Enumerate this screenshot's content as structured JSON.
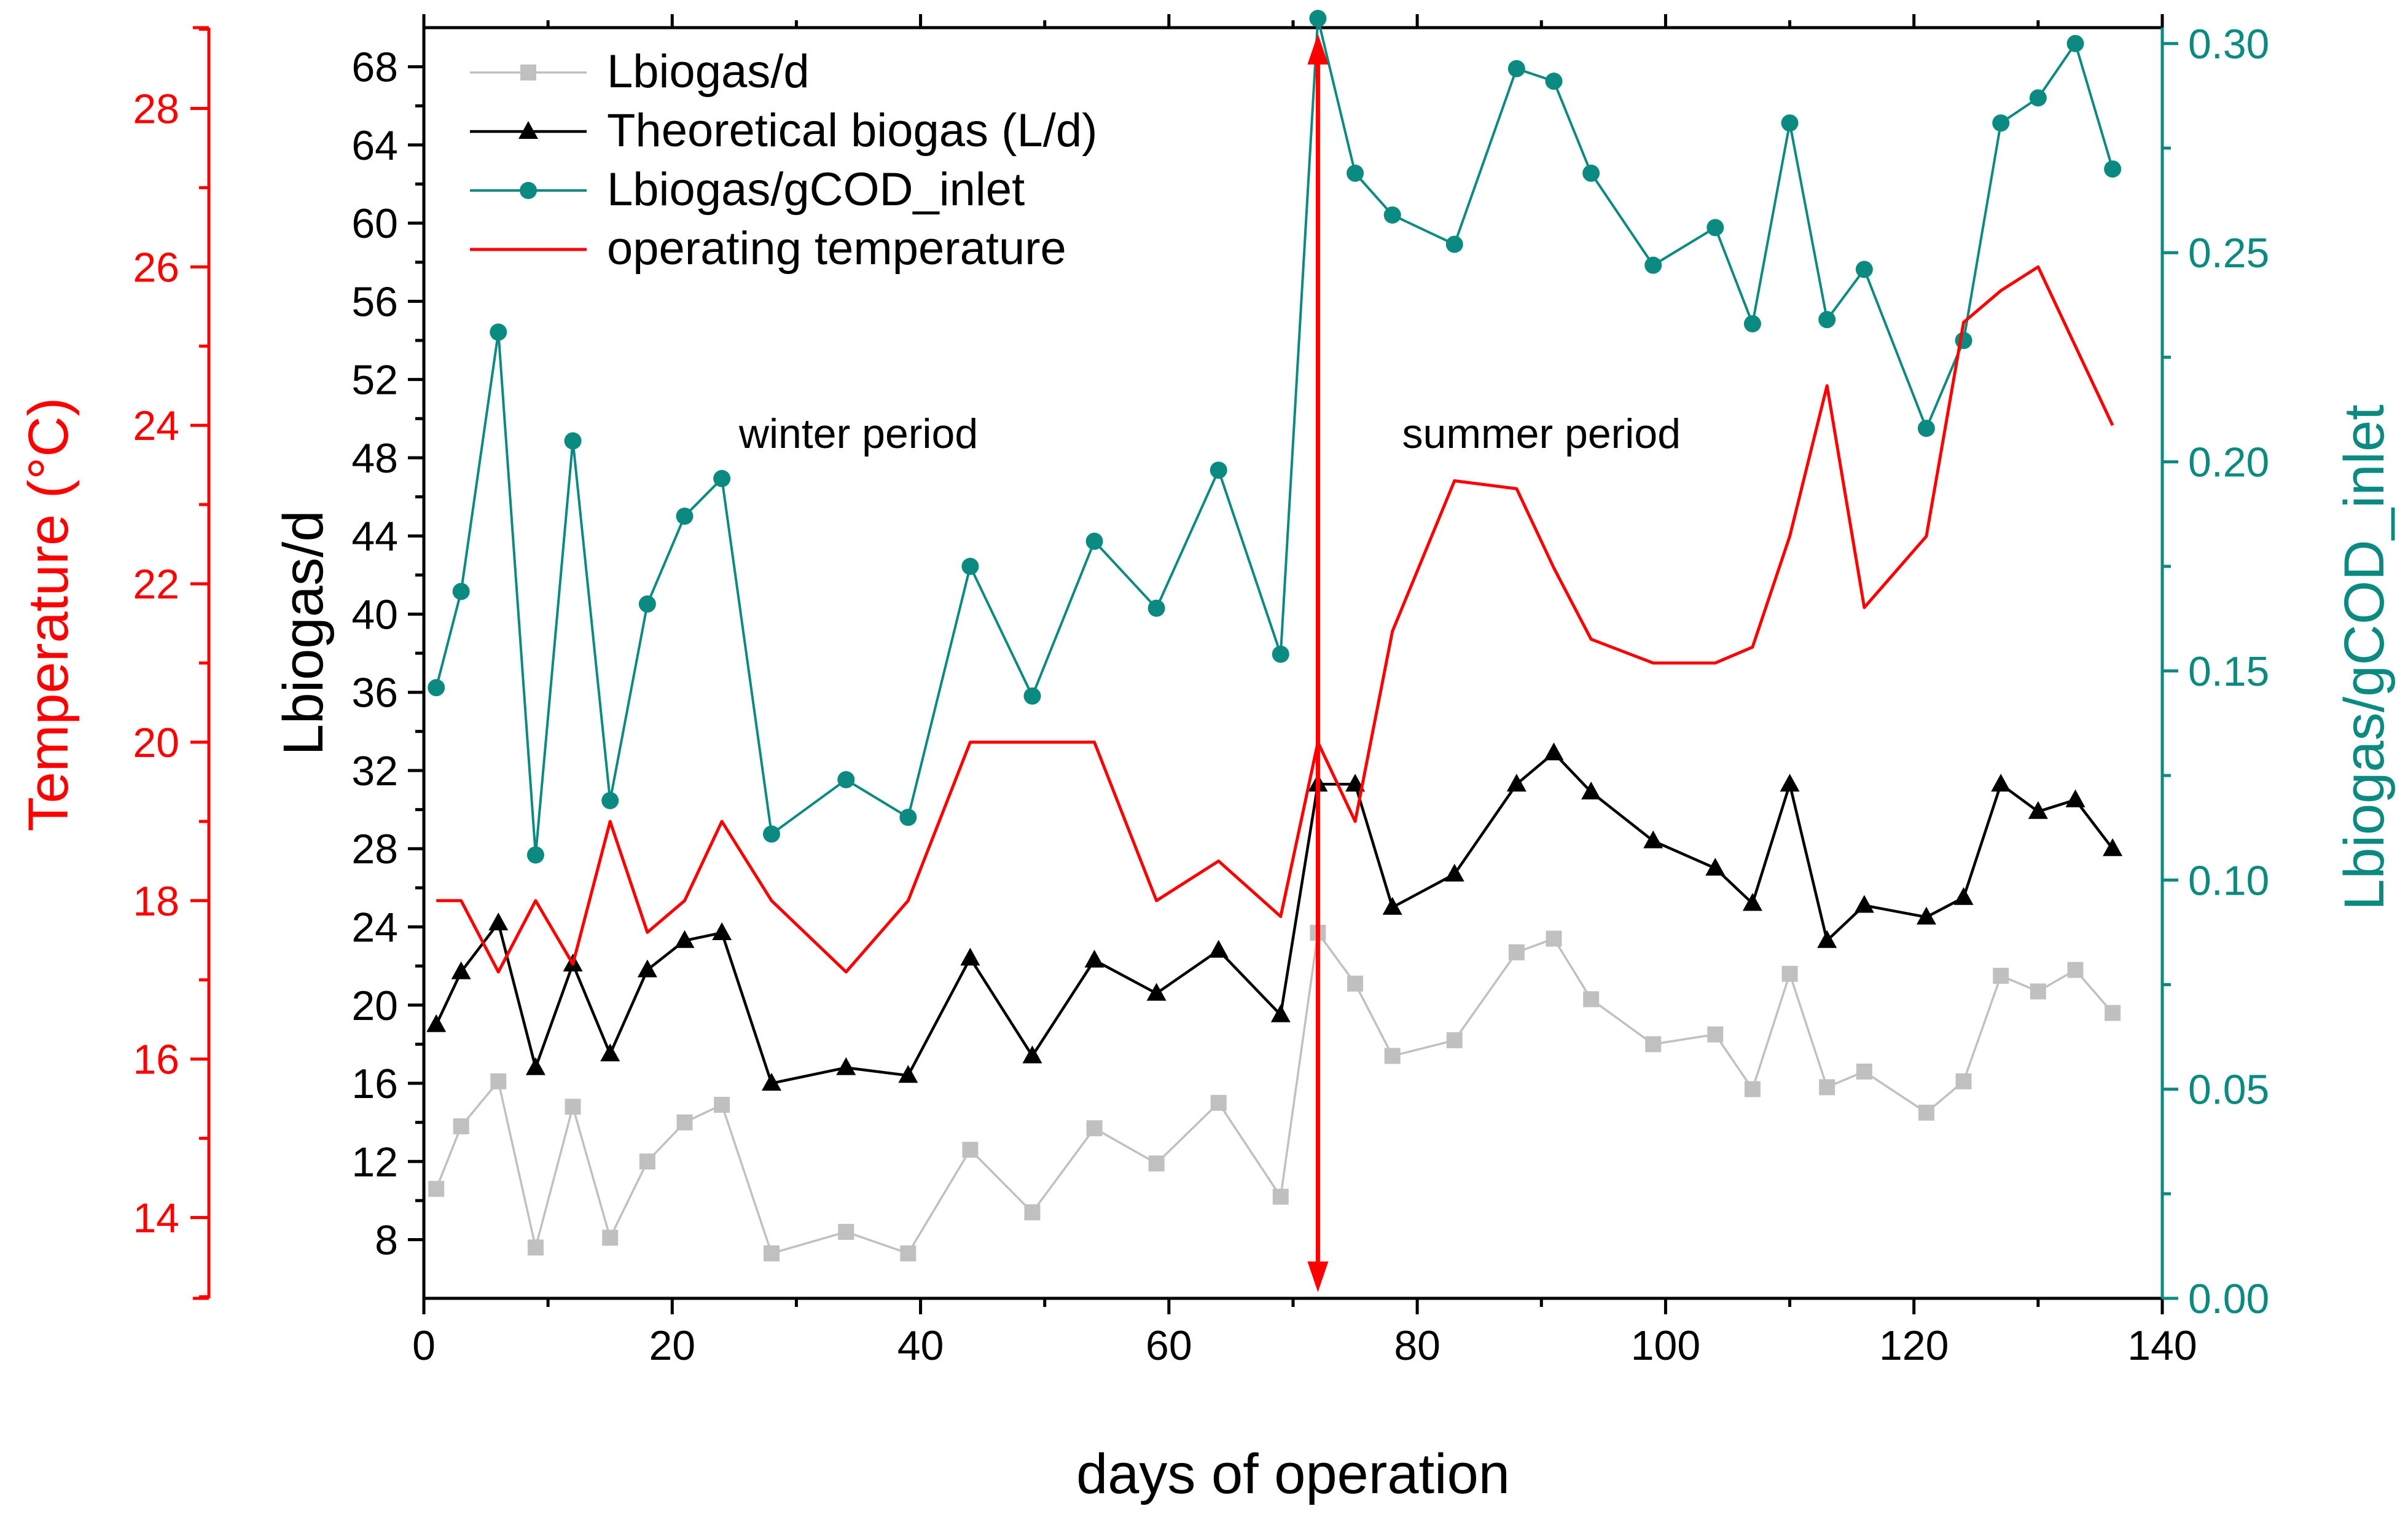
{
  "chart_data": {
    "type": "line",
    "title": "",
    "xlabel": "days of operation",
    "xlim": [
      0,
      140
    ],
    "xticks": [
      0,
      20,
      40,
      60,
      80,
      100,
      120,
      140
    ],
    "axes": {
      "left_primary": {
        "label": "Lbiogas/d",
        "range": [
          5,
          70
        ],
        "ticks": [
          8,
          12,
          16,
          20,
          24,
          28,
          32,
          36,
          40,
          44,
          48,
          52,
          56,
          60,
          64,
          68
        ],
        "color": "#000000"
      },
      "left_outer": {
        "label": "Temperature (°C)",
        "range": [
          12.98,
          29.02
        ],
        "ticks": [
          14,
          16,
          18,
          20,
          22,
          24,
          26,
          28
        ],
        "color": "#ff0000"
      },
      "right": {
        "label": "Lbiogas/gCOD_inlet",
        "range": [
          0,
          0.3038
        ],
        "ticks": [
          "0.00",
          "0.05",
          "0.10",
          "0.15",
          "0.20",
          "0.25",
          "0.30"
        ],
        "color": "#0a8a80"
      }
    },
    "series": [
      {
        "name": "Lbiogas/d",
        "axis": "left_primary",
        "color": "#c0c0c0",
        "marker": "square",
        "x": [
          1,
          3,
          6,
          9,
          12,
          15,
          18,
          21,
          24,
          28,
          34,
          39,
          44,
          49,
          54,
          59,
          64,
          69,
          72,
          75,
          78,
          83,
          88,
          91,
          94,
          99,
          104,
          107,
          110,
          113,
          116,
          121,
          124,
          127,
          130,
          133,
          136
        ],
        "y": [
          10.6,
          13.8,
          16.1,
          7.6,
          14.8,
          8.1,
          12.0,
          14.0,
          14.9,
          7.3,
          8.4,
          7.3,
          12.6,
          9.4,
          13.7,
          11.9,
          15.0,
          10.2,
          23.7,
          21.1,
          17.4,
          18.2,
          22.7,
          23.4,
          20.3,
          18.0,
          18.5,
          15.7,
          21.6,
          15.8,
          16.6,
          14.5,
          16.1,
          21.5,
          20.7,
          21.8,
          19.6
        ]
      },
      {
        "name": "Theoretical biogas (L/d)",
        "axis": "left_primary",
        "color": "#000000",
        "marker": "triangle",
        "x": [
          1,
          3,
          6,
          9,
          12,
          15,
          18,
          21,
          24,
          28,
          34,
          39,
          44,
          49,
          54,
          59,
          64,
          69,
          72,
          75,
          78,
          83,
          88,
          91,
          94,
          99,
          104,
          107,
          110,
          113,
          116,
          121,
          124,
          127,
          130,
          133,
          136
        ],
        "y": [
          19.0,
          21.7,
          24.2,
          16.8,
          22.1,
          17.5,
          21.8,
          23.3,
          23.7,
          16.0,
          16.8,
          16.4,
          22.4,
          17.4,
          22.3,
          20.6,
          22.8,
          19.5,
          31.3,
          31.3,
          25.0,
          26.7,
          31.3,
          32.9,
          30.9,
          28.4,
          27.0,
          25.2,
          31.3,
          23.3,
          25.1,
          24.5,
          25.5,
          31.3,
          29.9,
          30.5,
          28.0
        ]
      },
      {
        "name": "Lbiogas/gCOD_inlet",
        "axis": "right",
        "color": "#0a8a80",
        "marker": "circle",
        "x": [
          1,
          3,
          6,
          9,
          12,
          15,
          18,
          21,
          24,
          28,
          34,
          39,
          44,
          49,
          54,
          59,
          64,
          69,
          72,
          75,
          78,
          83,
          88,
          91,
          94,
          99,
          104,
          107,
          110,
          113,
          116,
          121,
          124,
          127,
          130,
          133,
          136
        ],
        "y": [
          0.146,
          0.169,
          0.231,
          0.106,
          0.205,
          0.119,
          0.166,
          0.187,
          0.196,
          0.111,
          0.124,
          0.115,
          0.175,
          0.144,
          0.181,
          0.165,
          0.198,
          0.154,
          0.306,
          0.269,
          0.259,
          0.252,
          0.294,
          0.291,
          0.269,
          0.247,
          0.256,
          0.233,
          0.281,
          0.234,
          0.246,
          0.208,
          0.229,
          0.281,
          0.287,
          0.3,
          0.27
        ]
      },
      {
        "name": "operating temperature",
        "axis": "left_outer",
        "color": "#ff0000",
        "marker": "none",
        "x": [
          1,
          3,
          6,
          9,
          12,
          15,
          18,
          21,
          24,
          28,
          34,
          39,
          44,
          49,
          54,
          59,
          64,
          69,
          72,
          75,
          78,
          83,
          88,
          91,
          94,
          99,
          104,
          107,
          110,
          113,
          116,
          121,
          124,
          127,
          130,
          133,
          136
        ],
        "y": [
          18.0,
          18.0,
          17.1,
          18.0,
          17.2,
          19.0,
          17.6,
          18.0,
          19.0,
          18.0,
          17.1,
          18.0,
          20.0,
          20.0,
          20.0,
          18.0,
          18.5,
          17.8,
          20.0,
          19.0,
          21.4,
          23.3,
          23.2,
          22.2,
          21.3,
          21.0,
          21.0,
          21.2,
          22.6,
          24.5,
          21.7,
          22.6,
          25.3,
          25.7,
          26.0,
          25.0,
          24.0
        ]
      }
    ],
    "annotations": [
      {
        "text": "winter period",
        "x": 35,
        "y": 48.5
      },
      {
        "text": "summer period",
        "x": 90,
        "y": 48.5
      },
      {
        "type": "double-arrow",
        "x": 72,
        "color": "#ff0000"
      }
    ],
    "legend": {
      "position": "top-left"
    }
  }
}
